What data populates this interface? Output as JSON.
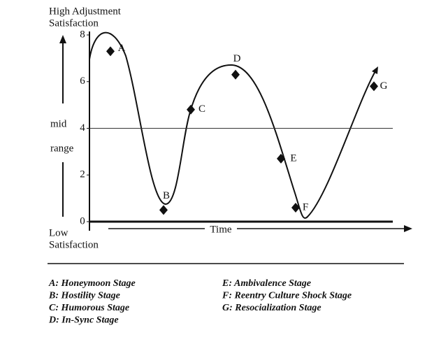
{
  "chart_data": {
    "type": "scatter",
    "y_label_top": [
      "High Adjustment",
      "Satisfaction"
    ],
    "y_label_mid": [
      "mid",
      "range"
    ],
    "y_label_bottom": [
      "Low",
      "Satisfaction"
    ],
    "x_label": "Time",
    "categories": [
      "A",
      "B",
      "C",
      "D",
      "E",
      "F",
      "G"
    ],
    "values": [
      7.3,
      0.5,
      4.8,
      6.3,
      2.7,
      0.6,
      5.8
    ],
    "color": "#111111",
    "ylim": [
      0,
      8
    ],
    "yticks": [
      0,
      2,
      4,
      6,
      8
    ],
    "reference_line": 4,
    "legend": [
      "A:  Honeymoon Stage",
      "B:  Hostility Stage",
      "C:  Humorous Stage",
      "D:  In-Sync Stage",
      "E:  Ambivalence Stage",
      "F:  Reentry  Culture Shock Stage",
      "G:  Resocialization Stage"
    ]
  }
}
